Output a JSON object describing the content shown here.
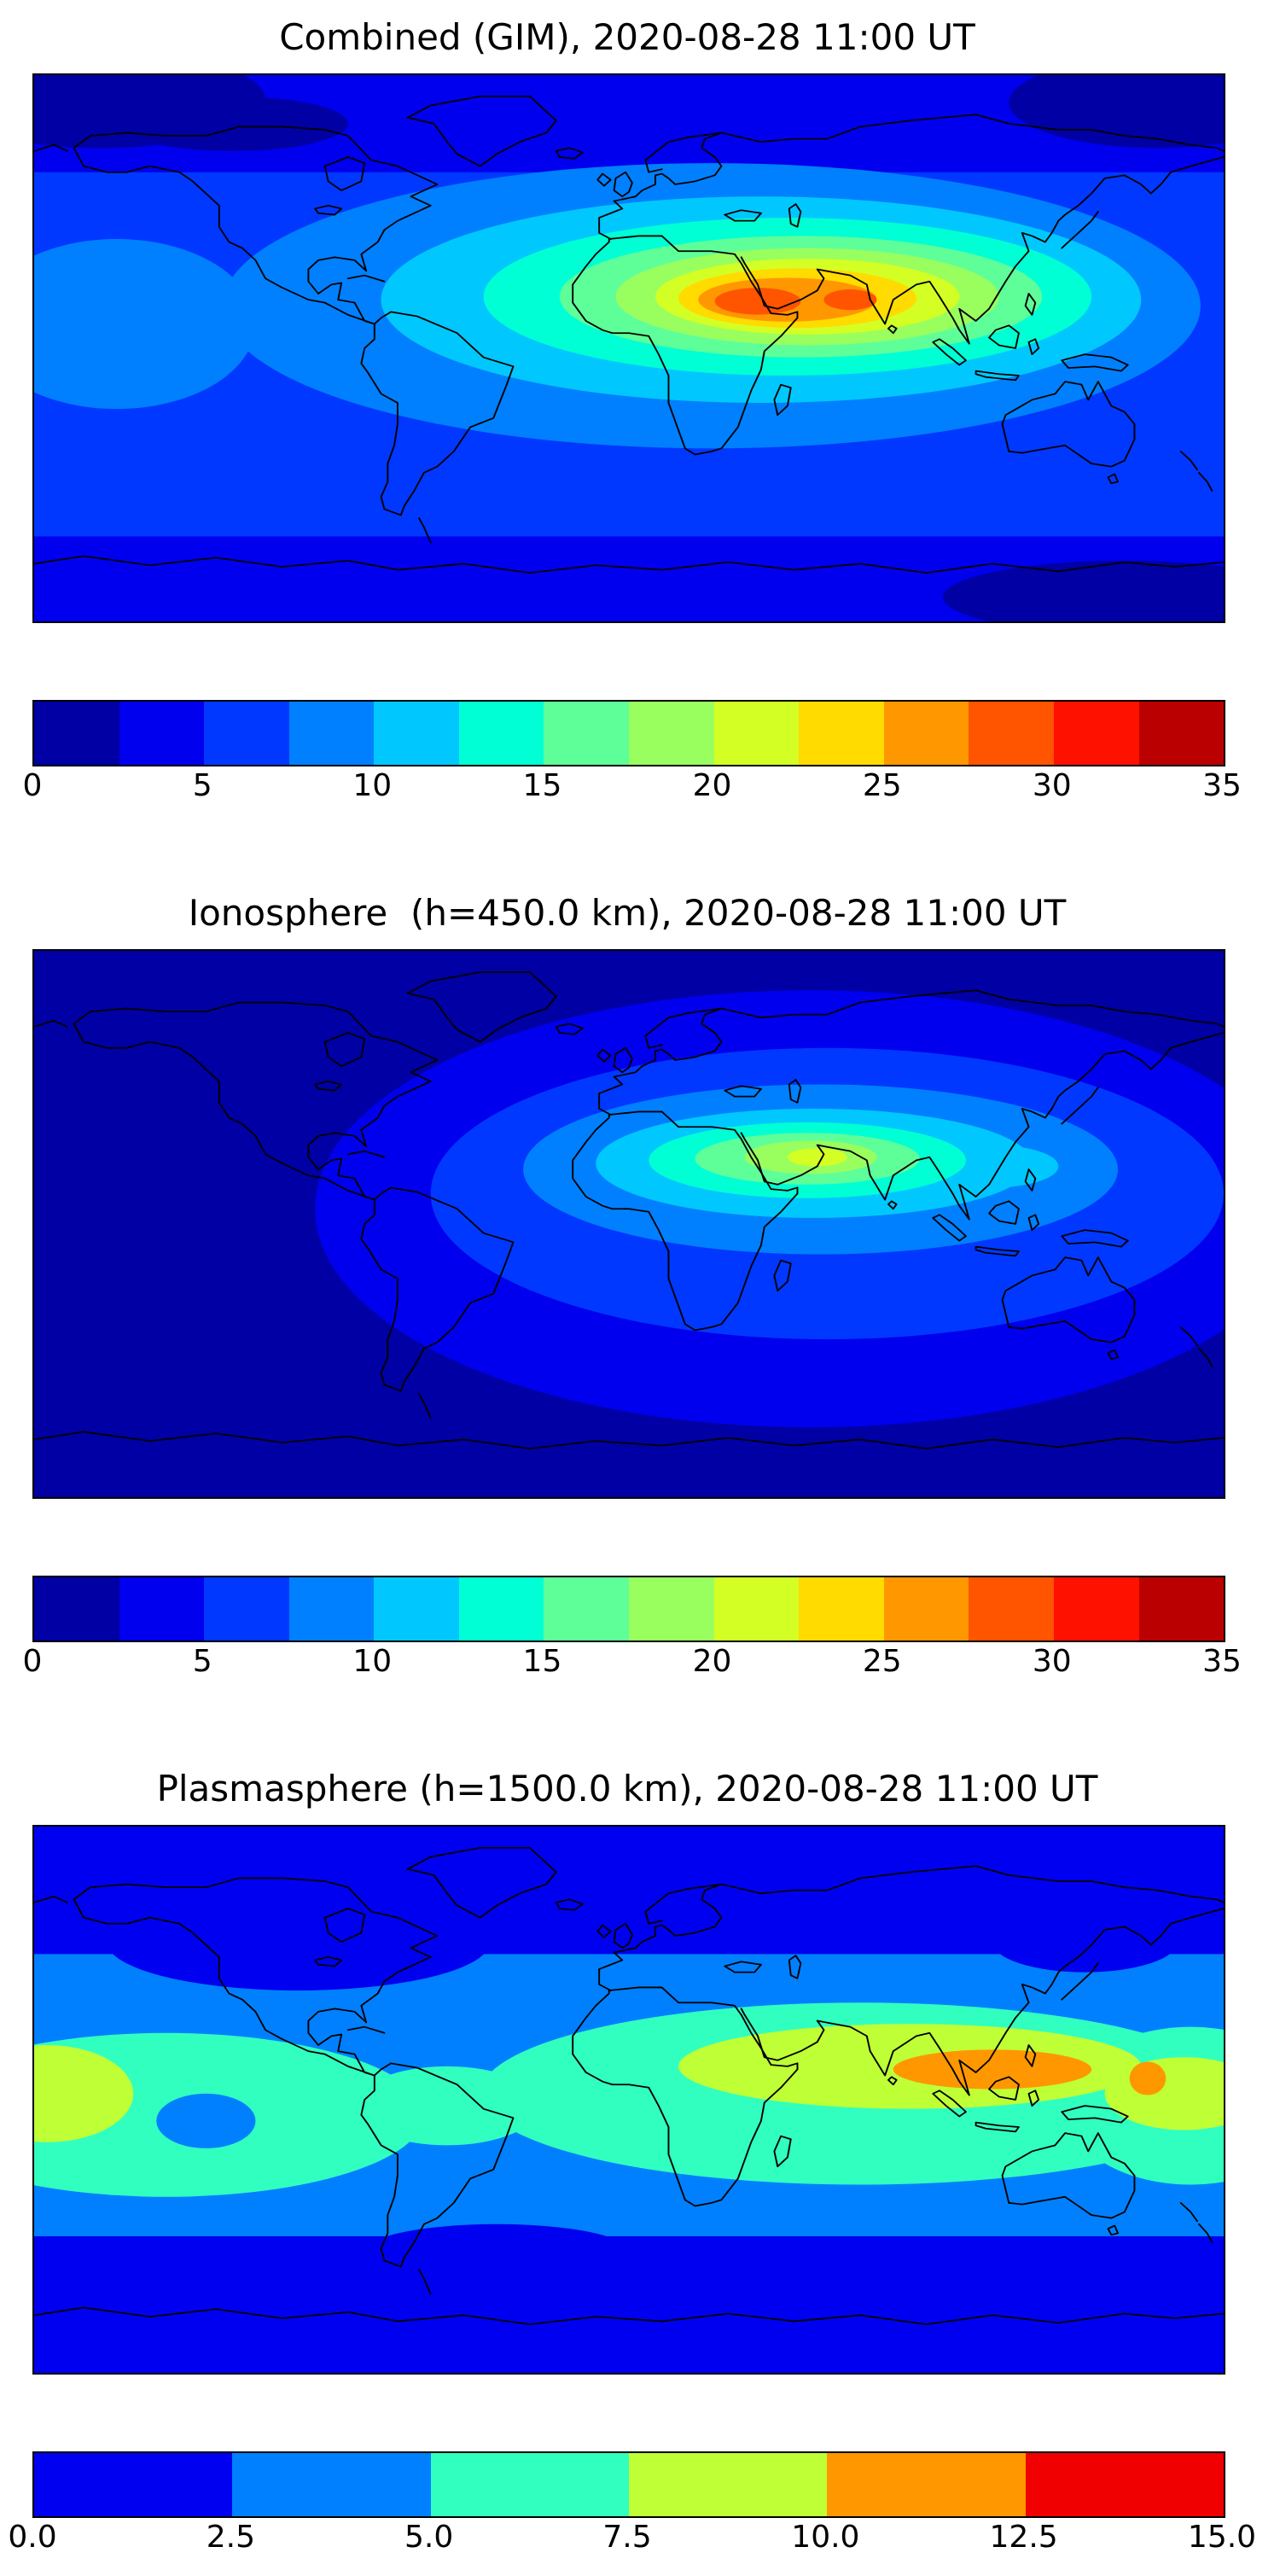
{
  "figure": {
    "background": "#ffffff",
    "panels": [
      {
        "id": "combined",
        "title": "Combined (GIM), 2020-08-28 11:00 UT",
        "colorbar": {
          "min": 0,
          "max": 35,
          "tick_labels": [
            "0",
            "5",
            "10",
            "15",
            "20",
            "25",
            "30",
            "35"
          ],
          "tick_positions": [
            0,
            0.1429,
            0.2857,
            0.4286,
            0.5714,
            0.7143,
            0.8571,
            1
          ],
          "colors": [
            "#0000a4",
            "#0000ee",
            "#0038ff",
            "#0080ff",
            "#00c8ff",
            "#00ffd4",
            "#5eff99",
            "#99ff5e",
            "#d4ff24",
            "#ffdb00",
            "#ff9700",
            "#ff5400",
            "#ff1100",
            "#ba0000"
          ]
        }
      },
      {
        "id": "ionosphere",
        "title": "Ionosphere  (h=450.0 km), 2020-08-28 11:00 UT",
        "colorbar": {
          "min": 0,
          "max": 35,
          "tick_labels": [
            "0",
            "5",
            "10",
            "15",
            "20",
            "25",
            "30",
            "35"
          ],
          "tick_positions": [
            0,
            0.1429,
            0.2857,
            0.4286,
            0.5714,
            0.7143,
            0.8571,
            1
          ],
          "colors": [
            "#0000a4",
            "#0000ee",
            "#0038ff",
            "#0080ff",
            "#00c8ff",
            "#00ffd4",
            "#5eff99",
            "#99ff5e",
            "#d4ff24",
            "#ffdb00",
            "#ff9700",
            "#ff5400",
            "#ff1100",
            "#ba0000"
          ]
        }
      },
      {
        "id": "plasmasphere",
        "title": "Plasmasphere (h=1500.0 km), 2020-08-28 11:00 UT",
        "colorbar": {
          "min": 0,
          "max": 15,
          "tick_labels": [
            "0.0",
            "2.5",
            "5.0",
            "7.5",
            "10.0",
            "12.5",
            "15.0"
          ],
          "tick_positions": [
            0,
            0.1667,
            0.3333,
            0.5,
            0.6667,
            0.8333,
            1
          ],
          "colors": [
            "#0000f0",
            "#0080ff",
            "#30ffc0",
            "#bfff36",
            "#ff9700",
            "#f00000"
          ]
        }
      }
    ]
  },
  "chart_data": [
    {
      "type": "heatmap",
      "title": "Combined (GIM), 2020-08-28 11:00 UT",
      "projection": "equirectangular",
      "overlay": "world-coastlines",
      "colormap": "jet",
      "levels": [
        0,
        2.5,
        5,
        7.5,
        10,
        12.5,
        15,
        17.5,
        20,
        22.5,
        25,
        27.5,
        30,
        32.5,
        35
      ],
      "colorbar_ticks": [
        0,
        5,
        10,
        15,
        20,
        25,
        30,
        35
      ],
      "lon": [
        -180,
        -120,
        -60,
        0,
        60,
        120,
        180
      ],
      "lat": [
        90,
        60,
        30,
        0,
        -30,
        -60,
        -90
      ],
      "values_approx": [
        [
          3,
          3,
          3,
          4,
          4,
          4,
          3
        ],
        [
          4,
          3,
          4,
          6,
          8,
          7,
          5
        ],
        [
          6,
          5,
          7,
          15,
          24,
          13,
          8
        ],
        [
          8,
          6,
          9,
          16,
          22,
          15,
          10
        ],
        [
          6,
          5,
          6,
          8,
          10,
          9,
          7
        ],
        [
          5,
          4,
          4,
          5,
          6,
          6,
          5
        ],
        [
          3,
          3,
          3,
          3,
          3,
          3,
          3
        ]
      ],
      "peak": {
        "lon": 40,
        "lat": 15,
        "value": 30
      },
      "notes": "Elongated east-west maximum over North Africa / Arabia / India reaching orange-red levels; darkest values at high latitudes and poles."
    },
    {
      "type": "heatmap",
      "title": "Ionosphere  (h=450.0 km), 2020-08-28 11:00 UT",
      "projection": "equirectangular",
      "overlay": "world-coastlines",
      "colormap": "jet",
      "levels": [
        0,
        2.5,
        5,
        7.5,
        10,
        12.5,
        15,
        17.5,
        20,
        22.5,
        25,
        27.5,
        30,
        32.5,
        35
      ],
      "colorbar_ticks": [
        0,
        5,
        10,
        15,
        20,
        25,
        30,
        35
      ],
      "lon": [
        -180,
        -120,
        -60,
        0,
        60,
        120,
        180
      ],
      "lat": [
        90,
        60,
        30,
        0,
        -30,
        -60,
        -90
      ],
      "values_approx": [
        [
          1,
          1,
          1,
          2,
          2,
          2,
          1
        ],
        [
          1,
          1,
          2,
          3,
          4,
          3,
          2
        ],
        [
          2,
          2,
          3,
          9,
          15,
          7,
          3
        ],
        [
          3,
          2,
          4,
          9,
          13,
          8,
          4
        ],
        [
          3,
          2,
          3,
          5,
          7,
          6,
          4
        ],
        [
          2,
          2,
          2,
          3,
          3,
          3,
          2
        ],
        [
          1,
          1,
          1,
          1,
          1,
          1,
          1
        ]
      ],
      "peak": {
        "lon": 55,
        "lat": 20,
        "value": 17
      },
      "notes": "Mostly dark blue; moderate green-yellow maximum over Arabia / northern Indian region, dark Pacific hemisphere."
    },
    {
      "type": "heatmap",
      "title": "Plasmasphere (h=1500.0 km), 2020-08-28 11:00 UT",
      "projection": "equirectangular",
      "overlay": "world-coastlines",
      "colormap": "jet",
      "levels": [
        0,
        2.5,
        5,
        7.5,
        10,
        12.5,
        15
      ],
      "colorbar_ticks": [
        0,
        2.5,
        5,
        7.5,
        10,
        12.5,
        15
      ],
      "lon": [
        -180,
        -120,
        -60,
        0,
        60,
        120,
        180
      ],
      "lat": [
        90,
        60,
        30,
        0,
        -30,
        -60,
        -90
      ],
      "values_approx": [
        [
          1.5,
          1.5,
          1.5,
          2,
          2,
          2,
          1.5
        ],
        [
          2,
          2,
          2,
          2.5,
          3,
          3,
          2
        ],
        [
          4,
          3,
          4,
          5,
          7,
          8,
          5
        ],
        [
          9,
          5,
          6,
          7,
          10,
          11,
          9
        ],
        [
          6,
          4,
          5,
          6,
          7,
          7,
          6
        ],
        [
          2.5,
          2,
          2,
          2.5,
          3,
          3,
          2.5
        ],
        [
          1.5,
          1.5,
          1.5,
          1.5,
          1.5,
          1.5,
          1.5
        ]
      ],
      "peak": {
        "lon": 95,
        "lat": 12,
        "value": 12
      },
      "notes": "Broad equatorial band; orange maximum over India / Southeast Asia, secondary orange spot in west Pacific, yellow-green patch at left (Pacific) edge, deeper blue oval in eastern Pacific."
    }
  ]
}
